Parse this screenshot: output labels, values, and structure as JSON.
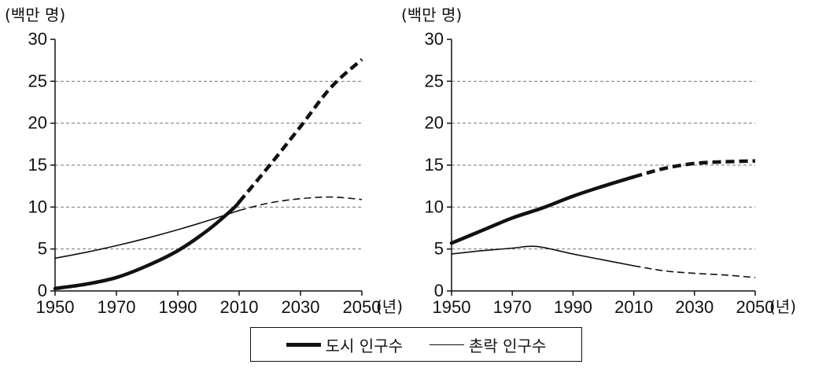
{
  "legend": {
    "urban_label": "도시 인구수",
    "rural_label": "촌락 인구수"
  },
  "chart_data": [
    {
      "type": "line",
      "y_unit_label": "(백만 명)",
      "x_unit_label": "(년)",
      "xlim": [
        1950,
        2050
      ],
      "ylim": [
        0,
        30
      ],
      "x_ticks": [
        1950,
        1970,
        1990,
        2010,
        2030,
        2050
      ],
      "y_ticks": [
        0,
        5,
        10,
        15,
        20,
        25,
        30
      ],
      "grid": "horizontal dashed",
      "projection_start": 2010,
      "series": [
        {
          "name": "도시 인구수",
          "style": "thick",
          "x": [
            1950,
            1960,
            1970,
            1980,
            1990,
            2000,
            2008,
            2010,
            2020,
            2030,
            2040,
            2050
          ],
          "values": [
            0.3,
            0.8,
            1.6,
            3.0,
            4.8,
            7.3,
            9.8,
            10.6,
            15.0,
            19.6,
            24.3,
            27.6
          ]
        },
        {
          "name": "촌락 인구수",
          "style": "thin",
          "x": [
            1950,
            1960,
            1970,
            1980,
            1990,
            2000,
            2010,
            2020,
            2030,
            2040,
            2050
          ],
          "values": [
            3.9,
            4.6,
            5.4,
            6.3,
            7.3,
            8.4,
            9.6,
            10.5,
            11.0,
            11.2,
            10.9
          ]
        }
      ]
    },
    {
      "type": "line",
      "y_unit_label": "(백만 명)",
      "x_unit_label": "(년)",
      "xlim": [
        1950,
        2050
      ],
      "ylim": [
        0,
        30
      ],
      "x_ticks": [
        1950,
        1970,
        1990,
        2010,
        2030,
        2050
      ],
      "y_ticks": [
        0,
        5,
        10,
        15,
        20,
        25,
        30
      ],
      "grid": "horizontal dashed",
      "projection_start": 2010,
      "series": [
        {
          "name": "도시 인구수",
          "style": "thick",
          "x": [
            1950,
            1960,
            1970,
            1980,
            1990,
            2000,
            2010,
            2020,
            2030,
            2040,
            2050
          ],
          "values": [
            5.7,
            7.2,
            8.7,
            9.9,
            11.3,
            12.5,
            13.6,
            14.6,
            15.2,
            15.4,
            15.5
          ]
        },
        {
          "name": "촌락 인구수",
          "style": "thin",
          "x": [
            1950,
            1960,
            1970,
            1978,
            1990,
            2000,
            2010,
            2020,
            2030,
            2040,
            2050
          ],
          "values": [
            4.4,
            4.8,
            5.1,
            5.3,
            4.4,
            3.7,
            3.0,
            2.4,
            2.1,
            1.9,
            1.6
          ]
        }
      ]
    }
  ]
}
